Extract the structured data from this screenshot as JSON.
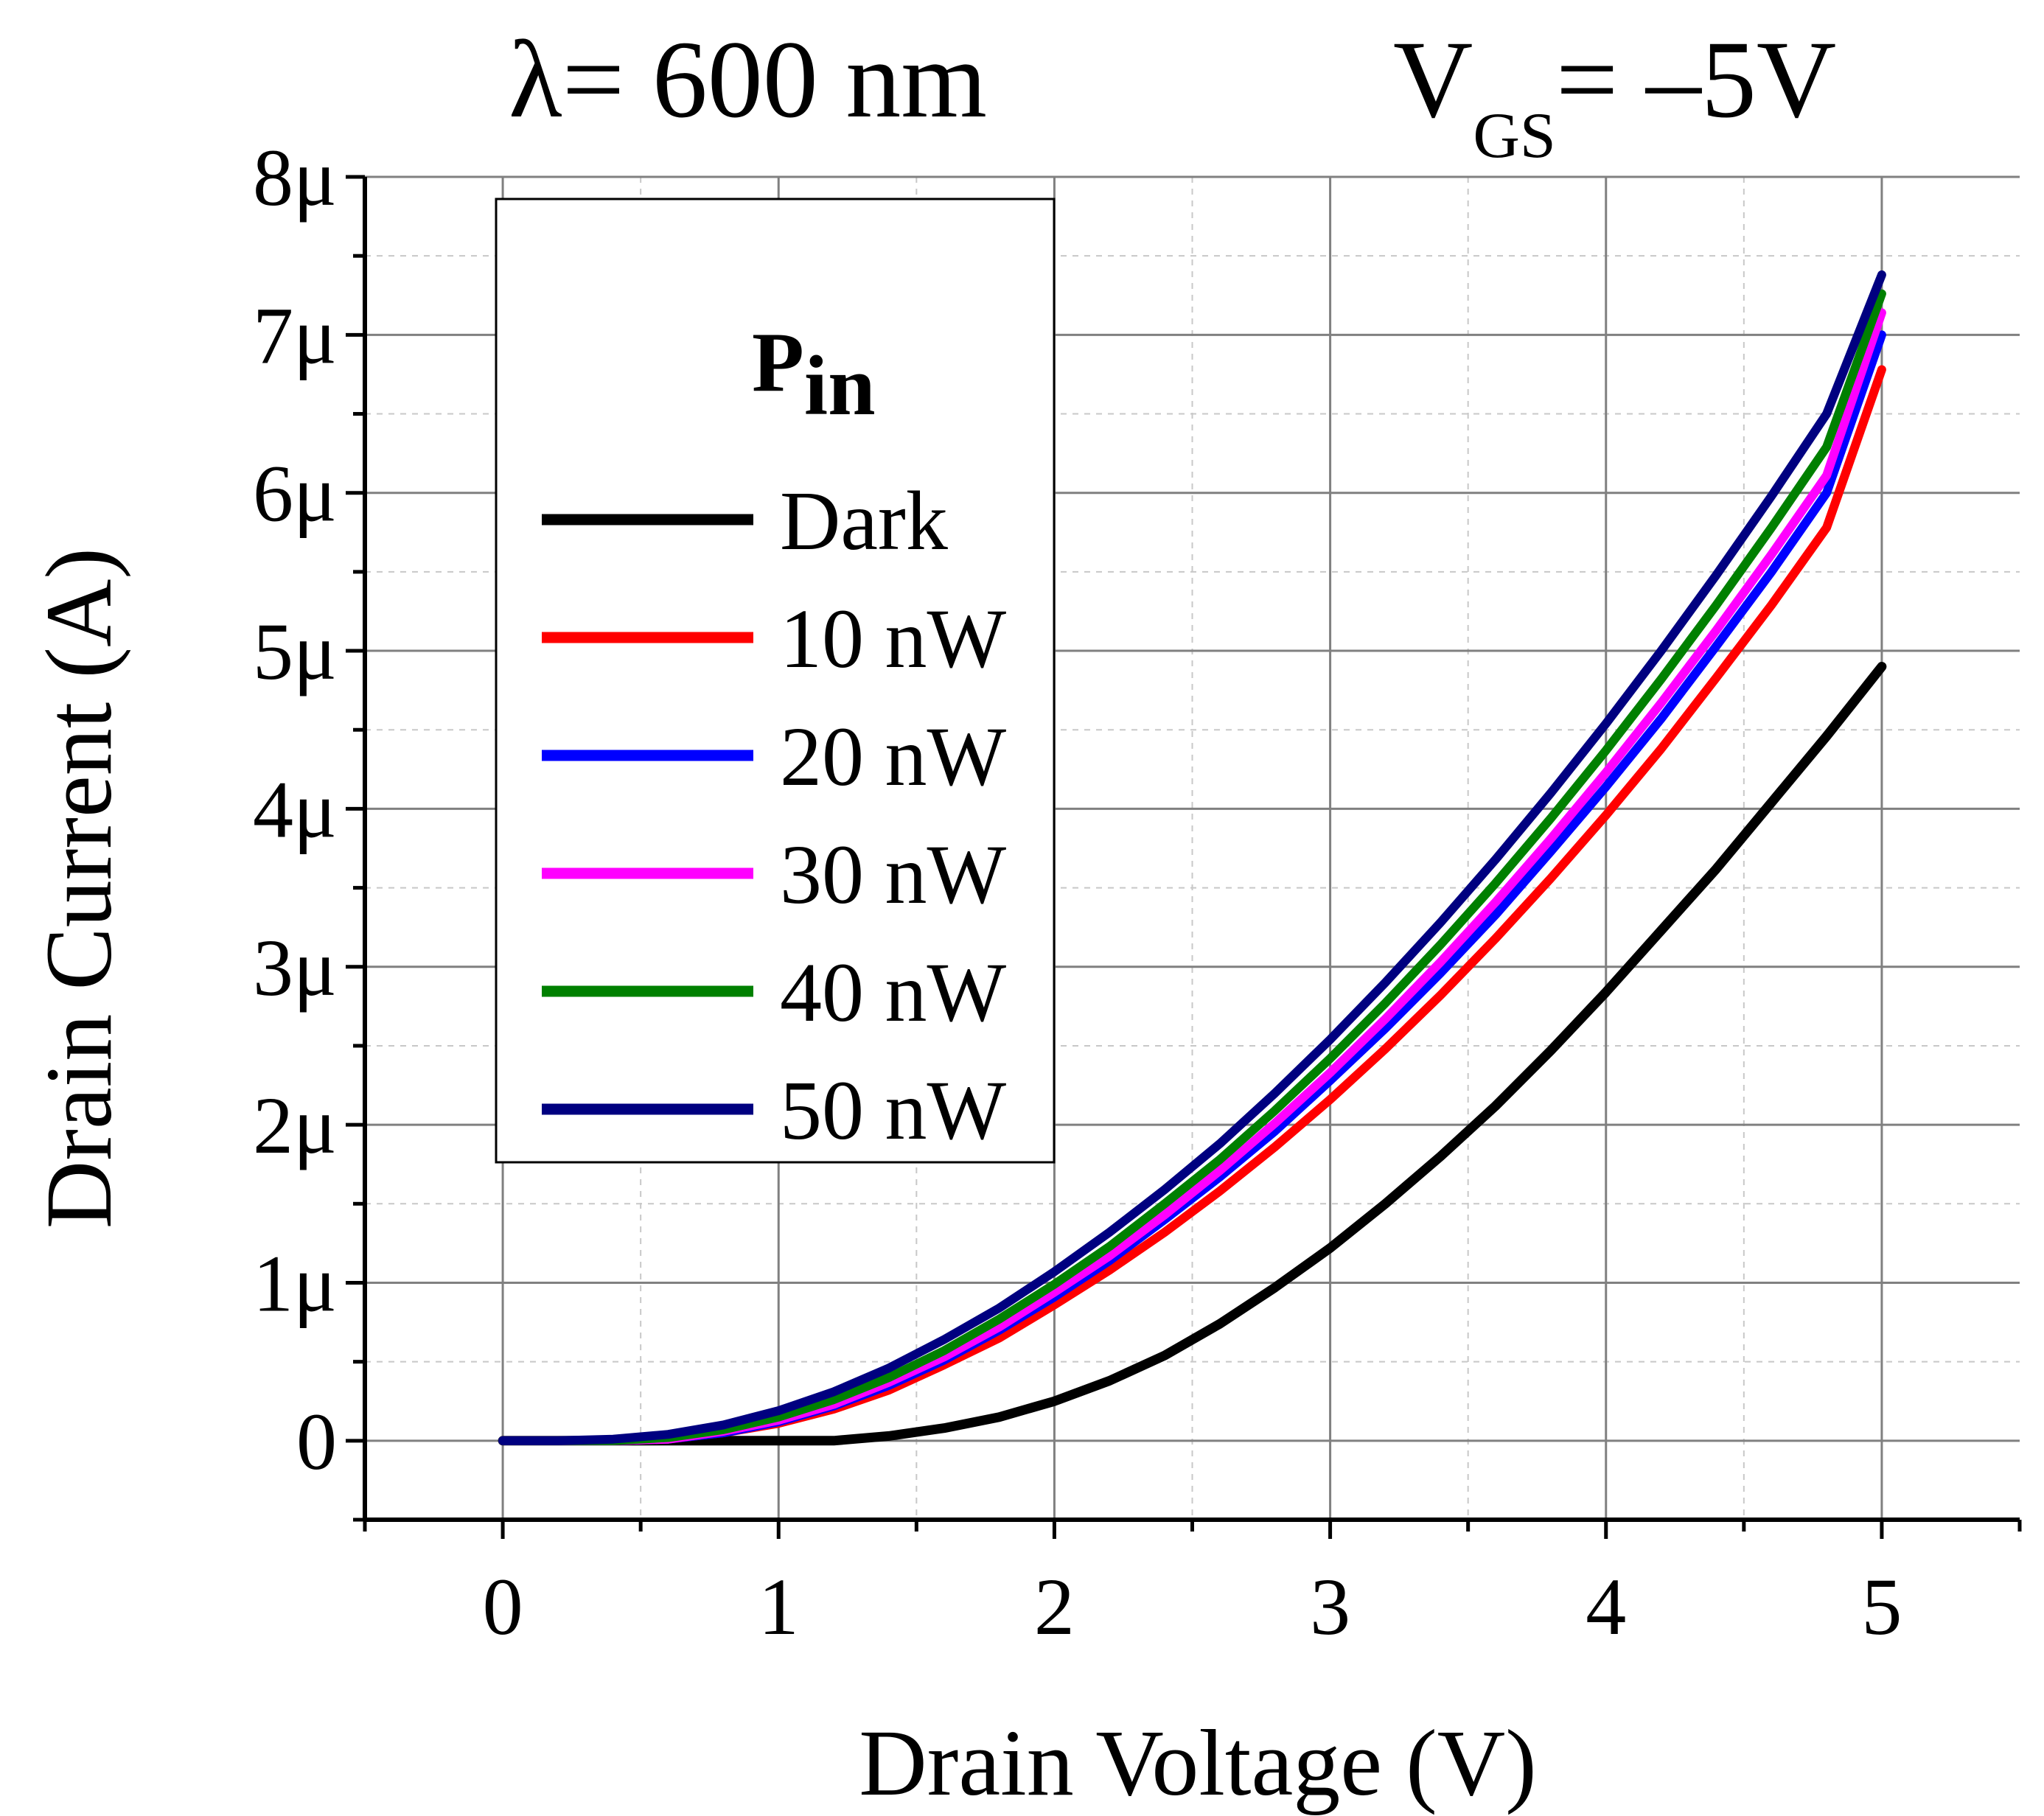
{
  "chart_data": {
    "type": "line",
    "title_left": "λ= 600 nm",
    "title_right": {
      "main": "V",
      "sub": "GS",
      "rest": "= –5V"
    },
    "xlabel": "Drain Voltage (V)",
    "ylabel": "Drain Current (A)",
    "xlim": [
      -0.5,
      5.5
    ],
    "ylim": [
      -0.5,
      8
    ],
    "x_ticks": [
      {
        "value": 0,
        "label": "0"
      },
      {
        "value": 1,
        "label": "1"
      },
      {
        "value": 2,
        "label": "2"
      },
      {
        "value": 3,
        "label": "3"
      },
      {
        "value": 4,
        "label": "4"
      },
      {
        "value": 5,
        "label": "5"
      }
    ],
    "y_ticks": [
      {
        "value": 0,
        "label": "0"
      },
      {
        "value": 1,
        "label": "1μ"
      },
      {
        "value": 2,
        "label": "2μ"
      },
      {
        "value": 3,
        "label": "3μ"
      },
      {
        "value": 4,
        "label": "4μ"
      },
      {
        "value": 5,
        "label": "5μ"
      },
      {
        "value": 6,
        "label": "6μ"
      },
      {
        "value": 7,
        "label": "7μ"
      },
      {
        "value": 8,
        "label": "8μ"
      }
    ],
    "y_unit_scale": "1e-6",
    "grid": true,
    "legend": {
      "title": "P",
      "title_sub": "in",
      "position": "top-left"
    },
    "x": [
      0,
      0.2,
      0.4,
      0.6,
      0.8,
      1.0,
      1.2,
      1.4,
      1.6,
      1.8,
      2.0,
      2.2,
      2.4,
      2.6,
      2.8,
      3.0,
      3.2,
      3.4,
      3.6,
      3.8,
      4.0,
      4.2,
      4.4,
      4.6,
      4.8,
      5.0
    ],
    "series": [
      {
        "name": "Dark",
        "color": "#000000",
        "values": [
          0,
          0,
          0,
          0,
          0,
          0.0,
          0.0,
          0.03,
          0.08,
          0.15,
          0.25,
          0.38,
          0.54,
          0.74,
          0.97,
          1.22,
          1.5,
          1.8,
          2.12,
          2.47,
          2.84,
          3.23,
          3.62,
          4.04,
          4.46,
          4.9
        ]
      },
      {
        "name": "10 nW",
        "color": "#ff0000",
        "values": [
          0,
          0,
          0,
          0.01,
          0.05,
          0.11,
          0.2,
          0.32,
          0.48,
          0.65,
          0.86,
          1.08,
          1.32,
          1.58,
          1.86,
          2.16,
          2.48,
          2.82,
          3.18,
          3.56,
          3.96,
          4.38,
          4.83,
          5.29,
          5.78,
          6.78
        ]
      },
      {
        "name": "20 nW",
        "color": "#0000ff",
        "values": [
          0,
          0,
          0,
          0.01,
          0.05,
          0.12,
          0.22,
          0.35,
          0.51,
          0.7,
          0.91,
          1.14,
          1.4,
          1.67,
          1.96,
          2.28,
          2.61,
          2.96,
          3.33,
          3.73,
          4.14,
          4.57,
          5.03,
          5.5,
          6.0,
          7.0
        ]
      },
      {
        "name": "30 nW",
        "color": "#ff00ff",
        "values": [
          0,
          0,
          0,
          0.01,
          0.06,
          0.13,
          0.23,
          0.37,
          0.53,
          0.72,
          0.94,
          1.17,
          1.43,
          1.71,
          2.01,
          2.33,
          2.67,
          3.03,
          3.41,
          3.81,
          4.23,
          4.67,
          5.13,
          5.61,
          6.11,
          7.14
        ]
      },
      {
        "name": "40 nW",
        "color": "#008000",
        "values": [
          0,
          0,
          0,
          0.02,
          0.07,
          0.15,
          0.26,
          0.4,
          0.57,
          0.77,
          0.99,
          1.23,
          1.5,
          1.78,
          2.09,
          2.42,
          2.77,
          3.14,
          3.53,
          3.94,
          4.37,
          4.82,
          5.29,
          5.78,
          6.29,
          7.26
        ]
      },
      {
        "name": "50 nW",
        "color": "#000080",
        "values": [
          0,
          0,
          0.01,
          0.04,
          0.1,
          0.19,
          0.31,
          0.46,
          0.64,
          0.84,
          1.07,
          1.32,
          1.59,
          1.88,
          2.2,
          2.54,
          2.9,
          3.28,
          3.68,
          4.1,
          4.54,
          5.0,
          5.48,
          5.98,
          6.5,
          7.38
        ]
      }
    ]
  }
}
